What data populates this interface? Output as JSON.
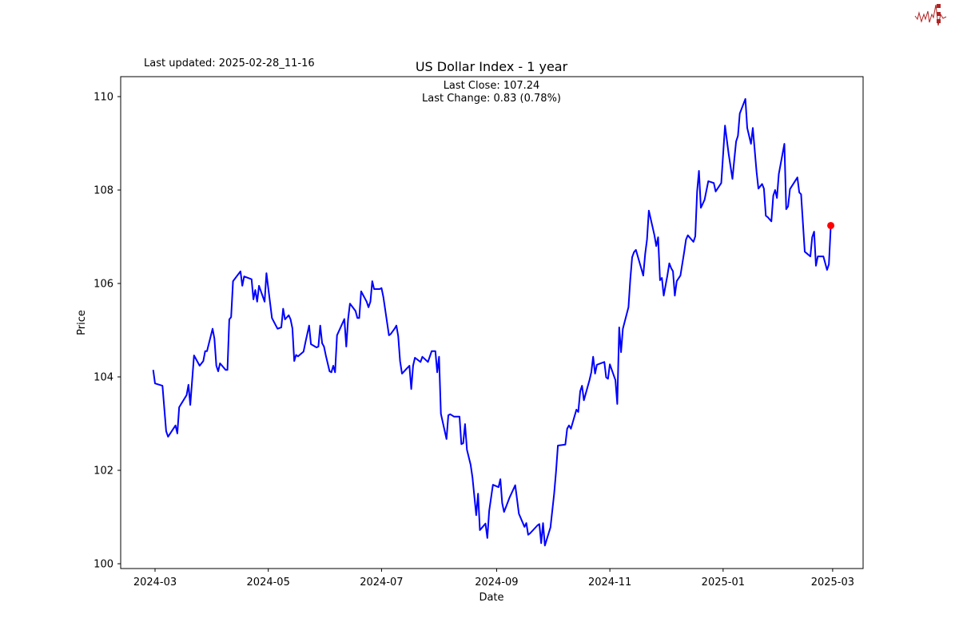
{
  "header": {
    "last_updated": "Last updated: 2025-02-28_11-16"
  },
  "logo": {
    "text": "SIGNAL 2 NOISE",
    "color": "#b22222"
  },
  "chart_data": {
    "type": "line",
    "title": "US Dollar Index - 1 year",
    "annotations": [
      "Last Close: 107.24",
      "Last Change: 0.83 (0.78%)"
    ],
    "xlabel": "Date",
    "ylabel": "Price",
    "xlim": [
      "2024-02-10",
      "2025-03-16"
    ],
    "ylim": [
      99.9,
      110.4
    ],
    "x_ticks": [
      "2024-03",
      "2024-05",
      "2024-07",
      "2024-09",
      "2024-11",
      "2025-01",
      "2025-03"
    ],
    "y_ticks": [
      100,
      102,
      104,
      106,
      108,
      110
    ],
    "grid": false,
    "line_color": "#0000ff",
    "marker_color": "#ff0000",
    "last_point": {
      "date": "2025-02-28",
      "value": 107.24
    },
    "series": [
      {
        "points": [
          [
            "2024-02-29",
            104.15
          ],
          [
            "2024-03-01",
            103.86
          ],
          [
            "2024-03-05",
            103.81
          ],
          [
            "2024-03-07",
            102.84
          ],
          [
            "2024-03-08",
            102.72
          ],
          [
            "2024-03-12",
            102.96
          ],
          [
            "2024-03-13",
            102.79
          ],
          [
            "2024-03-14",
            103.35
          ],
          [
            "2024-03-18",
            103.61
          ],
          [
            "2024-03-19",
            103.83
          ],
          [
            "2024-03-20",
            103.4
          ],
          [
            "2024-03-22",
            104.46
          ],
          [
            "2024-03-25",
            104.24
          ],
          [
            "2024-03-27",
            104.34
          ],
          [
            "2024-03-28",
            104.55
          ],
          [
            "2024-03-29",
            104.55
          ],
          [
            "2024-04-01",
            105.03
          ],
          [
            "2024-04-02",
            104.82
          ],
          [
            "2024-04-03",
            104.24
          ],
          [
            "2024-04-04",
            104.12
          ],
          [
            "2024-04-05",
            104.29
          ],
          [
            "2024-04-08",
            104.15
          ],
          [
            "2024-04-09",
            104.15
          ],
          [
            "2024-04-10",
            105.23
          ],
          [
            "2024-04-11",
            105.28
          ],
          [
            "2024-04-12",
            106.05
          ],
          [
            "2024-04-16",
            106.26
          ],
          [
            "2024-04-17",
            105.95
          ],
          [
            "2024-04-18",
            106.15
          ],
          [
            "2024-04-22",
            106.09
          ],
          [
            "2024-04-23",
            105.66
          ],
          [
            "2024-04-24",
            105.86
          ],
          [
            "2024-04-25",
            105.61
          ],
          [
            "2024-04-26",
            105.95
          ],
          [
            "2024-04-29",
            105.61
          ],
          [
            "2024-04-30",
            106.22
          ],
          [
            "2024-05-03",
            105.26
          ],
          [
            "2024-05-06",
            105.03
          ],
          [
            "2024-05-08",
            105.06
          ],
          [
            "2024-05-09",
            105.46
          ],
          [
            "2024-05-10",
            105.23
          ],
          [
            "2024-05-12",
            105.32
          ],
          [
            "2024-05-13",
            105.23
          ],
          [
            "2024-05-14",
            105.04
          ],
          [
            "2024-05-15",
            104.34
          ],
          [
            "2024-05-16",
            104.47
          ],
          [
            "2024-05-17",
            104.44
          ],
          [
            "2024-05-20",
            104.54
          ],
          [
            "2024-05-21",
            104.74
          ],
          [
            "2024-05-23",
            105.1
          ],
          [
            "2024-05-24",
            104.7
          ],
          [
            "2024-05-27",
            104.63
          ],
          [
            "2024-05-28",
            104.65
          ],
          [
            "2024-05-29",
            105.1
          ],
          [
            "2024-05-30",
            104.72
          ],
          [
            "2024-05-31",
            104.65
          ],
          [
            "2024-06-01",
            104.46
          ],
          [
            "2024-06-03",
            104.12
          ],
          [
            "2024-06-04",
            104.1
          ],
          [
            "2024-06-05",
            104.24
          ],
          [
            "2024-06-06",
            104.1
          ],
          [
            "2024-06-07",
            104.89
          ],
          [
            "2024-06-10",
            105.15
          ],
          [
            "2024-06-11",
            105.24
          ],
          [
            "2024-06-12",
            104.65
          ],
          [
            "2024-06-13",
            105.24
          ],
          [
            "2024-06-14",
            105.57
          ],
          [
            "2024-06-17",
            105.41
          ],
          [
            "2024-06-18",
            105.26
          ],
          [
            "2024-06-19",
            105.26
          ],
          [
            "2024-06-20",
            105.83
          ],
          [
            "2024-06-23",
            105.61
          ],
          [
            "2024-06-24",
            105.49
          ],
          [
            "2024-06-25",
            105.61
          ],
          [
            "2024-06-26",
            106.05
          ],
          [
            "2024-06-27",
            105.88
          ],
          [
            "2024-06-30",
            105.88
          ],
          [
            "2024-07-01",
            105.9
          ],
          [
            "2024-07-02",
            105.71
          ],
          [
            "2024-07-05",
            104.89
          ],
          [
            "2024-07-06",
            104.92
          ],
          [
            "2024-07-08",
            105.03
          ],
          [
            "2024-07-09",
            105.1
          ],
          [
            "2024-07-10",
            104.87
          ],
          [
            "2024-07-11",
            104.34
          ],
          [
            "2024-07-12",
            104.07
          ],
          [
            "2024-07-16",
            104.24
          ],
          [
            "2024-07-17",
            103.74
          ],
          [
            "2024-07-18",
            104.24
          ],
          [
            "2024-07-19",
            104.41
          ],
          [
            "2024-07-22",
            104.32
          ],
          [
            "2024-07-23",
            104.43
          ],
          [
            "2024-07-26",
            104.32
          ],
          [
            "2024-07-28",
            104.55
          ],
          [
            "2024-07-30",
            104.55
          ],
          [
            "2024-07-31",
            104.1
          ],
          [
            "2024-08-01",
            104.43
          ],
          [
            "2024-08-02",
            103.21
          ],
          [
            "2024-08-05",
            102.67
          ],
          [
            "2024-08-06",
            103.18
          ],
          [
            "2024-08-07",
            103.2
          ],
          [
            "2024-08-09",
            103.15
          ],
          [
            "2024-08-12",
            103.15
          ],
          [
            "2024-08-13",
            102.56
          ],
          [
            "2024-08-14",
            102.58
          ],
          [
            "2024-08-15",
            102.99
          ],
          [
            "2024-08-16",
            102.44
          ],
          [
            "2024-08-18",
            102.12
          ],
          [
            "2024-08-19",
            101.85
          ],
          [
            "2024-08-21",
            101.04
          ],
          [
            "2024-08-22",
            101.5
          ],
          [
            "2024-08-23",
            100.72
          ],
          [
            "2024-08-26",
            100.86
          ],
          [
            "2024-08-27",
            100.55
          ],
          [
            "2024-08-28",
            101.13
          ],
          [
            "2024-08-30",
            101.69
          ],
          [
            "2024-09-02",
            101.64
          ],
          [
            "2024-09-03",
            101.81
          ],
          [
            "2024-09-04",
            101.3
          ],
          [
            "2024-09-05",
            101.11
          ],
          [
            "2024-09-06",
            101.21
          ],
          [
            "2024-09-08",
            101.42
          ],
          [
            "2024-09-11",
            101.68
          ],
          [
            "2024-09-12",
            101.38
          ],
          [
            "2024-09-13",
            101.07
          ],
          [
            "2024-09-16",
            100.79
          ],
          [
            "2024-09-17",
            100.87
          ],
          [
            "2024-09-18",
            100.62
          ],
          [
            "2024-09-19",
            100.65
          ],
          [
            "2024-09-23",
            100.82
          ],
          [
            "2024-09-24",
            100.85
          ],
          [
            "2024-09-25",
            100.44
          ],
          [
            "2024-09-26",
            100.87
          ],
          [
            "2024-09-27",
            100.39
          ],
          [
            "2024-09-30",
            100.78
          ],
          [
            "2024-10-02",
            101.5
          ],
          [
            "2024-10-03",
            101.98
          ],
          [
            "2024-10-04",
            102.53
          ],
          [
            "2024-10-08",
            102.55
          ],
          [
            "2024-10-09",
            102.89
          ],
          [
            "2024-10-10",
            102.96
          ],
          [
            "2024-10-11",
            102.89
          ],
          [
            "2024-10-14",
            103.3
          ],
          [
            "2024-10-15",
            103.25
          ],
          [
            "2024-10-16",
            103.69
          ],
          [
            "2024-10-17",
            103.81
          ],
          [
            "2024-10-18",
            103.5
          ],
          [
            "2024-10-21",
            103.93
          ],
          [
            "2024-10-22",
            104.1
          ],
          [
            "2024-10-23",
            104.43
          ],
          [
            "2024-10-24",
            104.07
          ],
          [
            "2024-10-25",
            104.26
          ],
          [
            "2024-10-29",
            104.32
          ],
          [
            "2024-10-30",
            103.99
          ],
          [
            "2024-10-31",
            103.96
          ],
          [
            "2024-11-01",
            104.27
          ],
          [
            "2024-11-04",
            103.93
          ],
          [
            "2024-11-05",
            103.42
          ],
          [
            "2024-11-06",
            105.06
          ],
          [
            "2024-11-07",
            104.53
          ],
          [
            "2024-11-08",
            105.03
          ],
          [
            "2024-11-11",
            105.49
          ],
          [
            "2024-11-12",
            106.09
          ],
          [
            "2024-11-13",
            106.56
          ],
          [
            "2024-11-14",
            106.67
          ],
          [
            "2024-11-15",
            106.72
          ],
          [
            "2024-11-18",
            106.31
          ],
          [
            "2024-11-19",
            106.17
          ],
          [
            "2024-11-20",
            106.63
          ],
          [
            "2024-11-21",
            106.94
          ],
          [
            "2024-11-22",
            107.56
          ],
          [
            "2024-11-25",
            107.03
          ],
          [
            "2024-11-26",
            106.8
          ],
          [
            "2024-11-27",
            106.99
          ],
          [
            "2024-11-28",
            106.07
          ],
          [
            "2024-11-29",
            106.12
          ],
          [
            "2024-11-30",
            105.74
          ],
          [
            "2024-12-02",
            106.17
          ],
          [
            "2024-12-03",
            106.43
          ],
          [
            "2024-12-04",
            106.33
          ],
          [
            "2024-12-05",
            106.26
          ],
          [
            "2024-12-06",
            105.74
          ],
          [
            "2024-12-07",
            106.05
          ],
          [
            "2024-12-09",
            106.17
          ],
          [
            "2024-12-11",
            106.67
          ],
          [
            "2024-12-12",
            106.94
          ],
          [
            "2024-12-13",
            107.03
          ],
          [
            "2024-12-16",
            106.89
          ],
          [
            "2024-12-17",
            107.01
          ],
          [
            "2024-12-18",
            107.97
          ],
          [
            "2024-12-19",
            108.41
          ],
          [
            "2024-12-20",
            107.62
          ],
          [
            "2024-12-22",
            107.79
          ],
          [
            "2024-12-24",
            108.19
          ],
          [
            "2024-12-27",
            108.15
          ],
          [
            "2024-12-28",
            107.97
          ],
          [
            "2024-12-31",
            108.15
          ],
          [
            "2025-01-02",
            109.38
          ],
          [
            "2025-01-04",
            108.77
          ],
          [
            "2025-01-06",
            108.24
          ],
          [
            "2025-01-07",
            108.65
          ],
          [
            "2025-01-08",
            109.04
          ],
          [
            "2025-01-09",
            109.16
          ],
          [
            "2025-01-10",
            109.64
          ],
          [
            "2025-01-13",
            109.95
          ],
          [
            "2025-01-14",
            109.33
          ],
          [
            "2025-01-16",
            108.99
          ],
          [
            "2025-01-17",
            109.33
          ],
          [
            "2025-01-19",
            108.39
          ],
          [
            "2025-01-20",
            108.03
          ],
          [
            "2025-01-22",
            108.13
          ],
          [
            "2025-01-23",
            108.03
          ],
          [
            "2025-01-24",
            107.45
          ],
          [
            "2025-01-25",
            107.42
          ],
          [
            "2025-01-27",
            107.33
          ],
          [
            "2025-01-28",
            107.88
          ],
          [
            "2025-01-29",
            108.0
          ],
          [
            "2025-01-30",
            107.83
          ],
          [
            "2025-01-31",
            108.34
          ],
          [
            "2025-02-03",
            108.99
          ],
          [
            "2025-02-04",
            107.59
          ],
          [
            "2025-02-05",
            107.65
          ],
          [
            "2025-02-06",
            108.02
          ],
          [
            "2025-02-10",
            108.27
          ],
          [
            "2025-02-11",
            107.95
          ],
          [
            "2025-02-12",
            107.91
          ],
          [
            "2025-02-14",
            106.68
          ],
          [
            "2025-02-17",
            106.58
          ],
          [
            "2025-02-18",
            106.99
          ],
          [
            "2025-02-19",
            107.11
          ],
          [
            "2025-02-20",
            106.38
          ],
          [
            "2025-02-21",
            106.58
          ],
          [
            "2025-02-24",
            106.58
          ],
          [
            "2025-02-26",
            106.29
          ],
          [
            "2025-02-27",
            106.41
          ],
          [
            "2025-02-28",
            107.24
          ]
        ]
      }
    ]
  }
}
